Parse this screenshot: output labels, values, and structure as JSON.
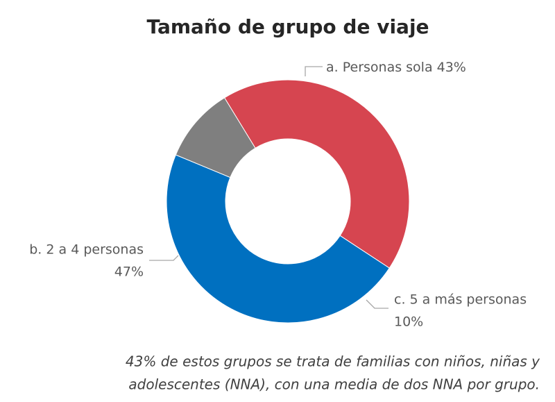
{
  "chart_data": {
    "type": "pie",
    "title": "Tamaño de grupo de viaje",
    "categories": [
      "a. Personas sola",
      "b. 2 a 4 personas",
      "c. 5 a más personas"
    ],
    "values": [
      43,
      47,
      10
    ],
    "value_labels": [
      "43%",
      "47%",
      "10%"
    ],
    "colors": [
      "#d64550",
      "#0070c0",
      "#7f7f7f"
    ],
    "donut": true,
    "annotations": [
      "43% de estos grupos se trata de familias con niños, niñas y",
      "adolescentes (NNA), con una media de dos NNA por grupo."
    ]
  }
}
